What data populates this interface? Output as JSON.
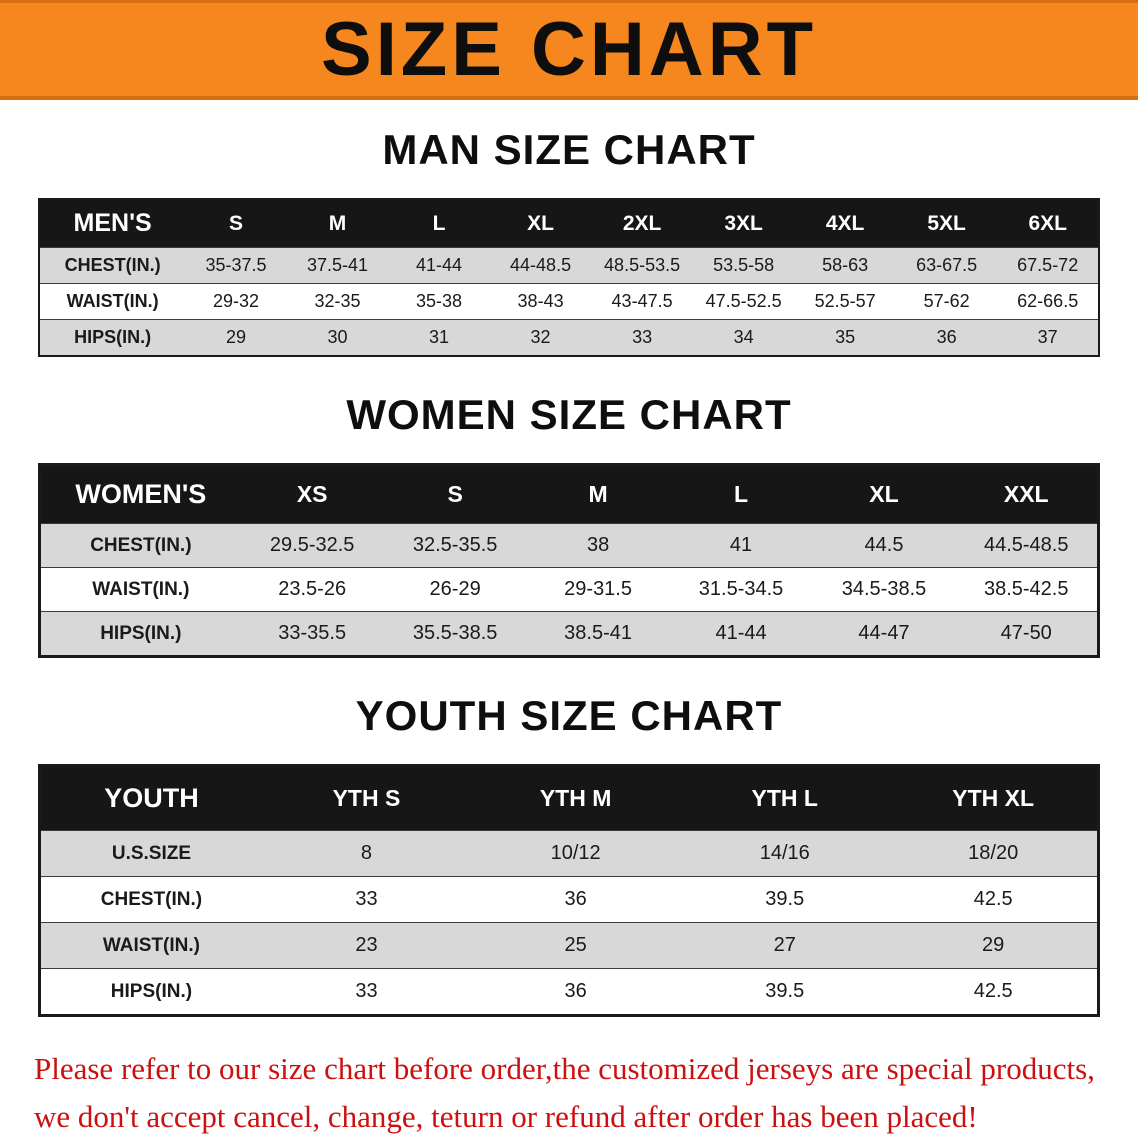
{
  "banner": {
    "title": "SIZE CHART"
  },
  "colors": {
    "banner_orange": "#f6871f",
    "header_black": "#161616",
    "row_gray": "#d8d8d8",
    "footer_red": "#cc1010"
  },
  "sections": [
    {
      "heading": "MAN SIZE CHART",
      "table": {
        "header": [
          "MEN'S",
          "S",
          "M",
          "L",
          "XL",
          "2XL",
          "3XL",
          "4XL",
          "5XL",
          "6XL"
        ],
        "rows": [
          [
            "CHEST(IN.)",
            "35-37.5",
            "37.5-41",
            "41-44",
            "44-48.5",
            "48.5-53.5",
            "53.5-58",
            "58-63",
            "63-67.5",
            "67.5-72"
          ],
          [
            "WAIST(IN.)",
            "29-32",
            "32-35",
            "35-38",
            "38-43",
            "43-47.5",
            "47.5-52.5",
            "52.5-57",
            "57-62",
            "62-66.5"
          ],
          [
            "HIPS(IN.)",
            "29",
            "30",
            "31",
            "32",
            "33",
            "34",
            "35",
            "36",
            "37"
          ]
        ]
      }
    },
    {
      "heading": "WOMEN SIZE CHART",
      "table": {
        "header": [
          "WOMEN'S",
          "XS",
          "S",
          "M",
          "L",
          "XL",
          "XXL"
        ],
        "rows": [
          [
            "CHEST(IN.)",
            "29.5-32.5",
            "32.5-35.5",
            "38",
            "41",
            "44.5",
            "44.5-48.5"
          ],
          [
            "WAIST(IN.)",
            "23.5-26",
            "26-29",
            "29-31.5",
            "31.5-34.5",
            "34.5-38.5",
            "38.5-42.5"
          ],
          [
            "HIPS(IN.)",
            "33-35.5",
            "35.5-38.5",
            "38.5-41",
            "41-44",
            "44-47",
            "47-50"
          ]
        ]
      }
    },
    {
      "heading": "YOUTH SIZE CHART",
      "table": {
        "header": [
          "YOUTH",
          "YTH S",
          "YTH M",
          "YTH L",
          "YTH XL"
        ],
        "rows": [
          [
            "U.S.SIZE",
            "8",
            "10/12",
            "14/16",
            "18/20"
          ],
          [
            "CHEST(IN.)",
            "33",
            "36",
            "39.5",
            "42.5"
          ],
          [
            "WAIST(IN.)",
            "23",
            "25",
            "27",
            "29"
          ],
          [
            "HIPS(IN.)",
            "33",
            "36",
            "39.5",
            "42.5"
          ]
        ]
      }
    }
  ],
  "footer": {
    "lines": [
      "Please refer to our size chart before order,the customized jerseys are special products,",
      "we don't accept cancel, change, teturn or refund after order has been placed!"
    ]
  }
}
